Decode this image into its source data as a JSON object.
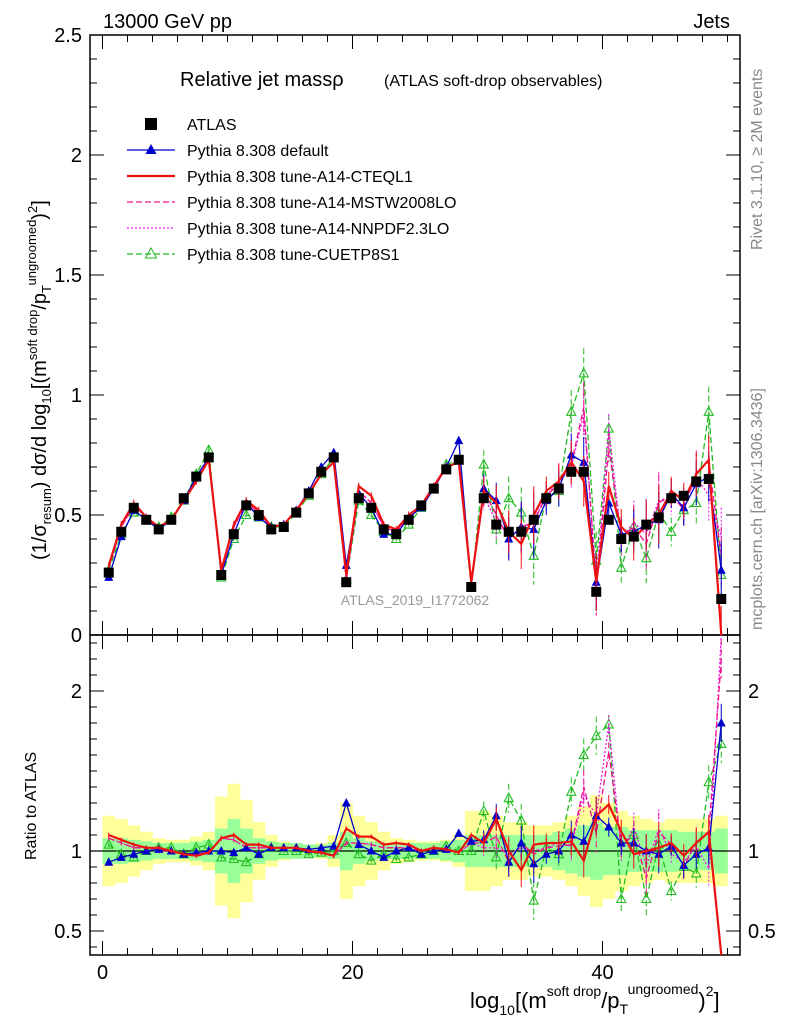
{
  "header": {
    "left": "13000 GeV pp",
    "right": "Jets"
  },
  "side_text": {
    "rivet": "Rivet 3.1.10, ≥ 2M events",
    "mcplots": "mcplots.cern.ch [arXiv:1306.3436]"
  },
  "watermark": "ATLAS_2019_I1772062",
  "colors": {
    "atlas": "#000000",
    "default": "#0000cc",
    "cteql1": "#ee1111",
    "mstw": "#ee1188",
    "nnpdf": "#ee11ee",
    "cuetp": "#22bb22",
    "band_outer": "#ffff99",
    "band_inner": "#99ff99"
  },
  "chart_data": [
    {
      "type": "line",
      "panel": "main",
      "title": "Relative jet massρ",
      "subtitle": "(ATLAS soft-drop observables)",
      "ylabel": "(1/σresum) dσ/d log10[(m soft drop/pT ungroomed)2]",
      "ylim": [
        0,
        2.5
      ],
      "xlim": [
        -1,
        51
      ],
      "yticks": [
        "0",
        "0.5",
        "1",
        "1.5",
        "2",
        "2.5"
      ],
      "legend_position": "top-left",
      "series": [
        {
          "name": "ATLAS",
          "key": "atlas",
          "marker": "square",
          "dash": "none",
          "values": [
            0.26,
            0.43,
            0.53,
            0.48,
            0.44,
            0.48,
            0.57,
            0.66,
            0.74,
            0.25,
            0.42,
            0.54,
            0.5,
            0.44,
            0.45,
            0.51,
            0.59,
            0.68,
            0.74,
            0.22,
            0.57,
            0.53,
            0.44,
            0.42,
            0.48,
            0.54,
            0.61,
            0.69,
            0.73,
            0.2,
            0.57,
            0.46,
            0.43,
            0.43,
            0.48,
            0.57,
            0.61,
            0.68,
            0.68,
            0.18,
            0.48,
            0.4,
            0.41,
            0.46,
            0.49,
            0.57,
            0.58,
            0.64,
            0.65,
            0.15
          ]
        },
        {
          "name": "Pythia 8.308 default",
          "key": "default",
          "marker": "triangle",
          "dash": "none",
          "values": [
            0.24,
            0.41,
            0.52,
            0.48,
            0.44,
            0.48,
            0.56,
            0.66,
            0.74,
            0.25,
            0.42,
            0.55,
            0.49,
            0.45,
            0.46,
            0.52,
            0.6,
            0.7,
            0.76,
            0.29,
            0.59,
            0.53,
            0.42,
            0.42,
            0.49,
            0.53,
            0.61,
            0.7,
            0.81,
            0.21,
            0.61,
            0.56,
            0.4,
            0.45,
            0.44,
            0.56,
            0.61,
            0.75,
            0.72,
            0.22,
            0.55,
            0.42,
            0.43,
            0.46,
            0.48,
            0.59,
            0.53,
            0.63,
            0.66,
            0.27
          ]
        },
        {
          "name": "Pythia 8.308 tune-A14-CTEQL1",
          "key": "cteql1",
          "marker": "none",
          "dash": "none",
          "values": [
            0.29,
            0.46,
            0.55,
            0.49,
            0.45,
            0.48,
            0.56,
            0.64,
            0.73,
            0.27,
            0.46,
            0.56,
            0.52,
            0.45,
            0.46,
            0.52,
            0.59,
            0.67,
            0.72,
            0.25,
            0.62,
            0.58,
            0.46,
            0.44,
            0.5,
            0.54,
            0.62,
            0.7,
            0.72,
            0.22,
            0.6,
            0.55,
            0.43,
            0.38,
            0.5,
            0.6,
            0.64,
            0.72,
            0.64,
            0.22,
            0.62,
            0.45,
            0.4,
            0.46,
            0.5,
            0.6,
            0.56,
            0.67,
            0.73,
            0.0
          ]
        },
        {
          "name": "Pythia 8.308 tune-A14-MSTW2008LO",
          "key": "mstw",
          "marker": "none",
          "dash": "dashed",
          "values": [
            0.28,
            0.45,
            0.54,
            0.49,
            0.44,
            0.48,
            0.56,
            0.65,
            0.73,
            0.27,
            0.45,
            0.55,
            0.51,
            0.45,
            0.46,
            0.52,
            0.59,
            0.67,
            0.72,
            0.23,
            0.6,
            0.55,
            0.45,
            0.43,
            0.49,
            0.54,
            0.62,
            0.7,
            0.72,
            0.21,
            0.6,
            0.5,
            0.4,
            0.45,
            0.47,
            0.58,
            0.63,
            0.71,
            0.95,
            0.2,
            0.78,
            0.41,
            0.45,
            0.38,
            0.55,
            0.59,
            0.52,
            0.68,
            0.72,
            0.33
          ]
        },
        {
          "name": "Pythia 8.308 tune-A14-NNPDF2.3LO",
          "key": "nnpdf",
          "marker": "none",
          "dash": "dotted",
          "values": [
            0.28,
            0.45,
            0.54,
            0.49,
            0.44,
            0.48,
            0.56,
            0.65,
            0.73,
            0.27,
            0.45,
            0.55,
            0.51,
            0.45,
            0.46,
            0.52,
            0.59,
            0.67,
            0.72,
            0.23,
            0.6,
            0.55,
            0.45,
            0.43,
            0.49,
            0.54,
            0.62,
            0.7,
            0.72,
            0.21,
            0.58,
            0.47,
            0.42,
            0.44,
            0.48,
            0.58,
            0.64,
            0.7,
            0.92,
            0.22,
            0.86,
            0.4,
            0.47,
            0.42,
            0.56,
            0.56,
            0.54,
            0.66,
            0.58,
            0.41
          ]
        },
        {
          "name": "Pythia 8.308 tune-CUETP8S1",
          "key": "cuetp",
          "marker": "triangle-open",
          "dash": "dashed",
          "values": [
            0.27,
            0.42,
            0.51,
            0.48,
            0.45,
            0.49,
            0.56,
            0.67,
            0.77,
            0.24,
            0.4,
            0.5,
            0.49,
            0.45,
            0.45,
            0.51,
            0.58,
            0.67,
            0.74,
            0.23,
            0.56,
            0.5,
            0.43,
            0.4,
            0.46,
            0.53,
            0.61,
            0.71,
            0.73,
            0.2,
            0.71,
            0.44,
            0.57,
            0.51,
            0.33,
            0.58,
            0.6,
            0.93,
            1.09,
            0.31,
            0.86,
            0.28,
            0.45,
            0.32,
            0.51,
            0.43,
            0.52,
            0.55,
            0.93,
            0.25
          ]
        }
      ]
    },
    {
      "type": "line",
      "panel": "ratio",
      "ylabel": "Ratio to ATLAS",
      "ylim": [
        0.35,
        2.35
      ],
      "yticks": [
        "0.5",
        "1",
        "2"
      ],
      "xlabel": "log10[(m soft drop/pT ungroomed)2]",
      "xticks": [
        "0",
        "20",
        "40"
      ],
      "band_inner_halfwidth": [
        0.08,
        0.08,
        0.07,
        0.06,
        0.05,
        0.05,
        0.05,
        0.06,
        0.07,
        0.14,
        0.2,
        0.14,
        0.08,
        0.06,
        0.05,
        0.05,
        0.04,
        0.04,
        0.05,
        0.12,
        0.08,
        0.06,
        0.05,
        0.05,
        0.05,
        0.05,
        0.05,
        0.06,
        0.07,
        0.1,
        0.1,
        0.1,
        0.1,
        0.1,
        0.1,
        0.1,
        0.12,
        0.14,
        0.16,
        0.18,
        0.15,
        0.15,
        0.13,
        0.13,
        0.13,
        0.13,
        0.12,
        0.12,
        0.12,
        0.14
      ],
      "band_outer_halfwidth": [
        0.22,
        0.2,
        0.16,
        0.12,
        0.08,
        0.07,
        0.07,
        0.09,
        0.12,
        0.34,
        0.42,
        0.32,
        0.18,
        0.1,
        0.06,
        0.04,
        0.04,
        0.05,
        0.1,
        0.3,
        0.22,
        0.18,
        0.12,
        0.08,
        0.07,
        0.06,
        0.06,
        0.07,
        0.1,
        0.25,
        0.25,
        0.22,
        0.18,
        0.18,
        0.16,
        0.16,
        0.18,
        0.22,
        0.28,
        0.35,
        0.3,
        0.25,
        0.22,
        0.2,
        0.18,
        0.2,
        0.2,
        0.2,
        0.2,
        0.22
      ],
      "series": [
        {
          "key": "default",
          "values": [
            0.93,
            0.96,
            0.98,
            1.0,
            1.01,
            1.0,
            0.98,
            0.99,
            1.0,
            1.0,
            0.99,
            1.02,
            0.98,
            1.02,
            1.02,
            1.02,
            1.01,
            1.02,
            1.03,
            1.3,
            1.04,
            1.0,
            0.96,
            1.0,
            1.02,
            0.98,
            1.0,
            1.01,
            1.11,
            1.06,
            1.07,
            1.22,
            0.93,
            1.05,
            0.92,
            0.98,
            1.0,
            1.1,
            1.06,
            1.22,
            1.15,
            1.05,
            1.05,
            1.0,
            0.98,
            1.03,
            0.91,
            0.98,
            1.02,
            1.8
          ]
        },
        {
          "key": "cteql1",
          "values": [
            1.1,
            1.07,
            1.04,
            1.02,
            1.02,
            1.0,
            0.98,
            0.97,
            0.99,
            1.08,
            1.1,
            1.04,
            1.04,
            1.02,
            1.02,
            1.02,
            1.0,
            0.99,
            0.97,
            1.14,
            1.09,
            1.09,
            1.04,
            1.05,
            1.04,
            1.0,
            1.02,
            1.01,
            0.99,
            1.1,
            1.05,
            1.2,
            1.0,
            0.88,
            1.04,
            1.05,
            1.05,
            1.06,
            0.94,
            1.22,
            1.29,
            1.12,
            0.98,
            1.0,
            1.02,
            1.05,
            0.97,
            1.05,
            1.12,
            0.0
          ]
        },
        {
          "key": "mstw",
          "values": [
            1.08,
            1.05,
            1.02,
            1.02,
            1.0,
            1.0,
            0.98,
            0.98,
            0.99,
            1.08,
            1.07,
            1.02,
            1.02,
            1.02,
            1.02,
            1.02,
            1.0,
            0.99,
            0.97,
            1.05,
            1.05,
            1.04,
            1.02,
            1.02,
            1.02,
            1.0,
            1.02,
            1.01,
            0.99,
            1.05,
            1.05,
            1.09,
            0.93,
            1.05,
            0.98,
            1.02,
            1.03,
            1.04,
            1.4,
            1.11,
            1.62,
            1.03,
            1.1,
            0.83,
            1.12,
            1.04,
            0.9,
            1.06,
            1.11,
            2.2
          ]
        },
        {
          "key": "nnpdf",
          "values": [
            1.08,
            1.05,
            1.02,
            1.02,
            1.0,
            1.0,
            0.98,
            0.98,
            0.99,
            1.08,
            1.07,
            1.02,
            1.02,
            1.02,
            1.02,
            1.02,
            1.0,
            0.99,
            0.97,
            1.05,
            1.05,
            1.04,
            1.02,
            1.02,
            1.02,
            1.0,
            1.02,
            1.01,
            0.99,
            1.05,
            1.02,
            1.02,
            0.98,
            1.02,
            1.0,
            1.02,
            1.05,
            1.03,
            1.35,
            1.22,
            1.79,
            1.0,
            1.15,
            0.91,
            1.14,
            0.98,
            0.93,
            1.03,
            0.89,
            2.73
          ]
        },
        {
          "key": "cuetp",
          "values": [
            1.04,
            0.98,
            0.96,
            1.0,
            1.02,
            1.02,
            0.98,
            1.02,
            1.04,
            0.96,
            0.95,
            0.93,
            0.98,
            1.02,
            1.0,
            1.0,
            0.98,
            0.99,
            1.0,
            1.05,
            0.98,
            0.94,
            0.98,
            0.95,
            0.96,
            0.98,
            1.0,
            1.03,
            1.0,
            1.0,
            1.25,
            0.96,
            1.33,
            1.19,
            0.69,
            1.02,
            0.98,
            1.37,
            1.6,
            1.72,
            1.79,
            0.7,
            1.1,
            0.7,
            1.04,
            0.75,
            0.9,
            0.86,
            1.43,
            1.67
          ]
        }
      ]
    }
  ]
}
